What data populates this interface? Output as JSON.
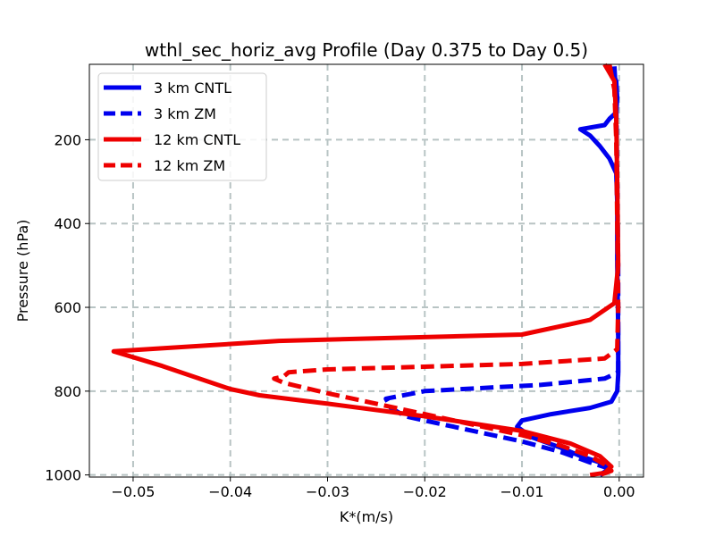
{
  "chart_data": {
    "type": "line",
    "title": "wthl_sec_horiz_avg Profile (Day 0.375 to Day 0.5)",
    "xlabel": "K*(m/s)",
    "ylabel": "Pressure (hPa)",
    "xlim": [
      -0.0545,
      0.0025
    ],
    "ylim": [
      1005,
      20
    ],
    "y_inverted": true,
    "grid": true,
    "legend_position": "top-left",
    "xticks": [
      {
        "value": -0.05,
        "label": "−0.05"
      },
      {
        "value": -0.04,
        "label": "−0.04"
      },
      {
        "value": -0.03,
        "label": "−0.03"
      },
      {
        "value": -0.02,
        "label": "−0.02"
      },
      {
        "value": -0.01,
        "label": "−0.01"
      },
      {
        "value": 0.0,
        "label": "0.00"
      }
    ],
    "yticks": [
      {
        "value": 200,
        "label": "200"
      },
      {
        "value": 400,
        "label": "400"
      },
      {
        "value": 600,
        "label": "600"
      },
      {
        "value": 800,
        "label": "800"
      },
      {
        "value": 1000,
        "label": "1000"
      }
    ],
    "series": [
      {
        "name": "3 km CNTL",
        "color": "#0000ee",
        "linestyle": "solid",
        "points": [
          [
            -0.001,
            25
          ],
          [
            -0.0003,
            60
          ],
          [
            -0.0002,
            100
          ],
          [
            -0.0003,
            135
          ],
          [
            -0.001,
            150
          ],
          [
            -0.0015,
            165
          ],
          [
            -0.004,
            175
          ],
          [
            -0.003,
            190
          ],
          [
            -0.002,
            215
          ],
          [
            -0.001,
            245
          ],
          [
            -0.0003,
            280
          ],
          [
            -0.0002,
            350
          ],
          [
            -0.0002,
            500
          ],
          [
            -0.0001,
            650
          ],
          [
            -0.0001,
            760
          ],
          [
            -0.0002,
            800
          ],
          [
            -0.0008,
            825
          ],
          [
            -0.003,
            840
          ],
          [
            -0.007,
            855
          ],
          [
            -0.01,
            870
          ],
          [
            -0.0105,
            885
          ],
          [
            -0.009,
            910
          ],
          [
            -0.006,
            935
          ],
          [
            -0.004,
            955
          ],
          [
            -0.002,
            970
          ],
          [
            -0.001,
            985
          ],
          [
            -0.002,
            1000
          ]
        ]
      },
      {
        "name": "3 km ZM",
        "color": "#0000ee",
        "linestyle": "dashed",
        "points": [
          [
            -0.0005,
            25
          ],
          [
            -0.0003,
            100
          ],
          [
            -0.0002,
            300
          ],
          [
            -0.0001,
            500
          ],
          [
            -0.0001,
            700
          ],
          [
            -0.0001,
            755
          ],
          [
            -0.0015,
            770
          ],
          [
            -0.008,
            785
          ],
          [
            -0.02,
            800
          ],
          [
            -0.024,
            818
          ],
          [
            -0.0235,
            840
          ],
          [
            -0.022,
            860
          ],
          [
            -0.018,
            880
          ],
          [
            -0.014,
            900
          ],
          [
            -0.01,
            920
          ],
          [
            -0.006,
            945
          ],
          [
            -0.003,
            970
          ],
          [
            -0.001,
            985
          ],
          [
            -0.002,
            1000
          ]
        ]
      },
      {
        "name": "12 km CNTL",
        "color": "#ee0000",
        "linestyle": "solid",
        "points": [
          [
            -0.0015,
            20
          ],
          [
            -0.0005,
            60
          ],
          [
            -0.0003,
            150
          ],
          [
            -0.0002,
            300
          ],
          [
            -0.0001,
            500
          ],
          [
            -0.0005,
            590
          ],
          [
            -0.003,
            630
          ],
          [
            -0.01,
            665
          ],
          [
            -0.035,
            680
          ],
          [
            -0.052,
            705
          ],
          [
            -0.047,
            740
          ],
          [
            -0.04,
            795
          ],
          [
            -0.037,
            810
          ],
          [
            -0.03,
            830
          ],
          [
            -0.02,
            860
          ],
          [
            -0.01,
            895
          ],
          [
            -0.005,
            925
          ],
          [
            -0.002,
            955
          ],
          [
            -0.0008,
            980
          ],
          [
            -0.0015,
            995
          ],
          [
            -0.003,
            1000
          ]
        ]
      },
      {
        "name": "12 km ZM",
        "color": "#ee0000",
        "linestyle": "dashed",
        "points": [
          [
            -0.001,
            20
          ],
          [
            -0.0005,
            80
          ],
          [
            -0.0003,
            200
          ],
          [
            -0.0002,
            400
          ],
          [
            -0.0001,
            600
          ],
          [
            -0.0002,
            700
          ],
          [
            -0.0015,
            722
          ],
          [
            -0.01,
            735
          ],
          [
            -0.03,
            748
          ],
          [
            -0.034,
            755
          ],
          [
            -0.0345,
            765
          ],
          [
            -0.0355,
            770
          ],
          [
            -0.0345,
            780
          ],
          [
            -0.03,
            805
          ],
          [
            -0.025,
            830
          ],
          [
            -0.02,
            855
          ],
          [
            -0.015,
            880
          ],
          [
            -0.01,
            905
          ],
          [
            -0.006,
            930
          ],
          [
            -0.003,
            955
          ],
          [
            -0.0015,
            975
          ],
          [
            -0.0008,
            990
          ],
          [
            -0.002,
            1000
          ]
        ]
      }
    ]
  }
}
